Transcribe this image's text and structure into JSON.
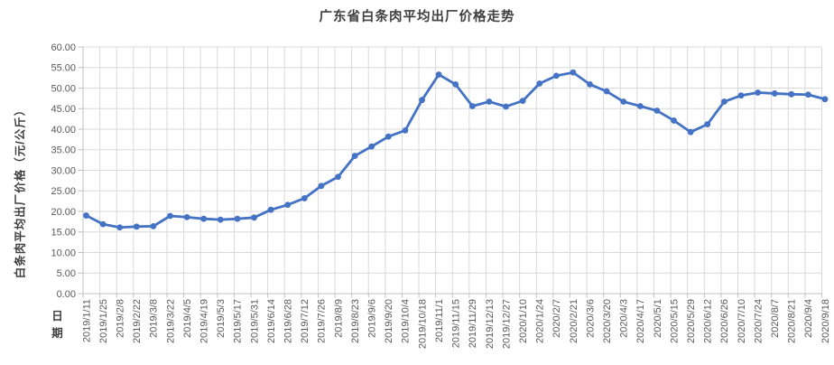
{
  "chart_data": {
    "type": "line",
    "title": "广东省白条肉平均出厂价格走势",
    "xlabel": "日期",
    "ylabel": "白条肉平均出厂价格（元/公斤）",
    "ylim": [
      0,
      60
    ],
    "ytick_step": 5,
    "ytick_labels": [
      "0.00",
      "5.00",
      "10.00",
      "15.00",
      "20.00",
      "25.00",
      "30.00",
      "35.00",
      "40.00",
      "45.00",
      "50.00",
      "55.00",
      "60.00"
    ],
    "grid": true,
    "legend": "none",
    "categories": [
      "2019/1/11",
      "2019/1/25",
      "2019/2/8",
      "2019/2/22",
      "2019/3/8",
      "2019/3/22",
      "2019/4/5",
      "2019/4/19",
      "2019/5/3",
      "2019/5/17",
      "2019/5/31",
      "2019/6/14",
      "2019/6/28",
      "2019/7/12",
      "2019/7/26",
      "2019/8/9",
      "2019/8/23",
      "2019/9/6",
      "2019/9/20",
      "2019/10/4",
      "2019/10/18",
      "2019/11/1",
      "2019/11/15",
      "2019/11/29",
      "2019/12/13",
      "2019/12/27",
      "2020/1/10",
      "2020/1/24",
      "2020/2/7",
      "2020/2/21",
      "2020/3/6",
      "2020/3/20",
      "2020/4/3",
      "2020/4/17",
      "2020/5/1",
      "2020/5/15",
      "2020/5/29",
      "2020/6/12",
      "2020/6/26",
      "2020/7/10",
      "2020/7/24",
      "2020/8/7",
      "2020/8/21",
      "2020/9/4",
      "2020/9/18"
    ],
    "values": [
      19.0,
      16.9,
      16.1,
      16.3,
      16.4,
      18.9,
      18.6,
      18.2,
      18.0,
      18.2,
      18.5,
      20.4,
      21.6,
      23.2,
      26.2,
      28.4,
      33.5,
      35.8,
      38.2,
      39.7,
      47.1,
      53.3,
      50.9,
      45.6,
      46.7,
      45.5,
      46.9,
      51.1,
      53.0,
      53.8,
      50.9,
      49.2,
      46.7,
      45.6,
      44.5,
      42.1,
      39.3,
      41.2,
      46.7,
      48.2,
      48.9,
      48.7,
      48.5,
      48.4,
      47.3
    ],
    "colors": {
      "line": "#4472C4",
      "marker": "#4472C4",
      "grid": "#D9D9D9",
      "axis": "#BFBFBF",
      "tick_text": "#595959",
      "title_text": "#404040",
      "axis_title_text": "#3F3F3F"
    }
  }
}
